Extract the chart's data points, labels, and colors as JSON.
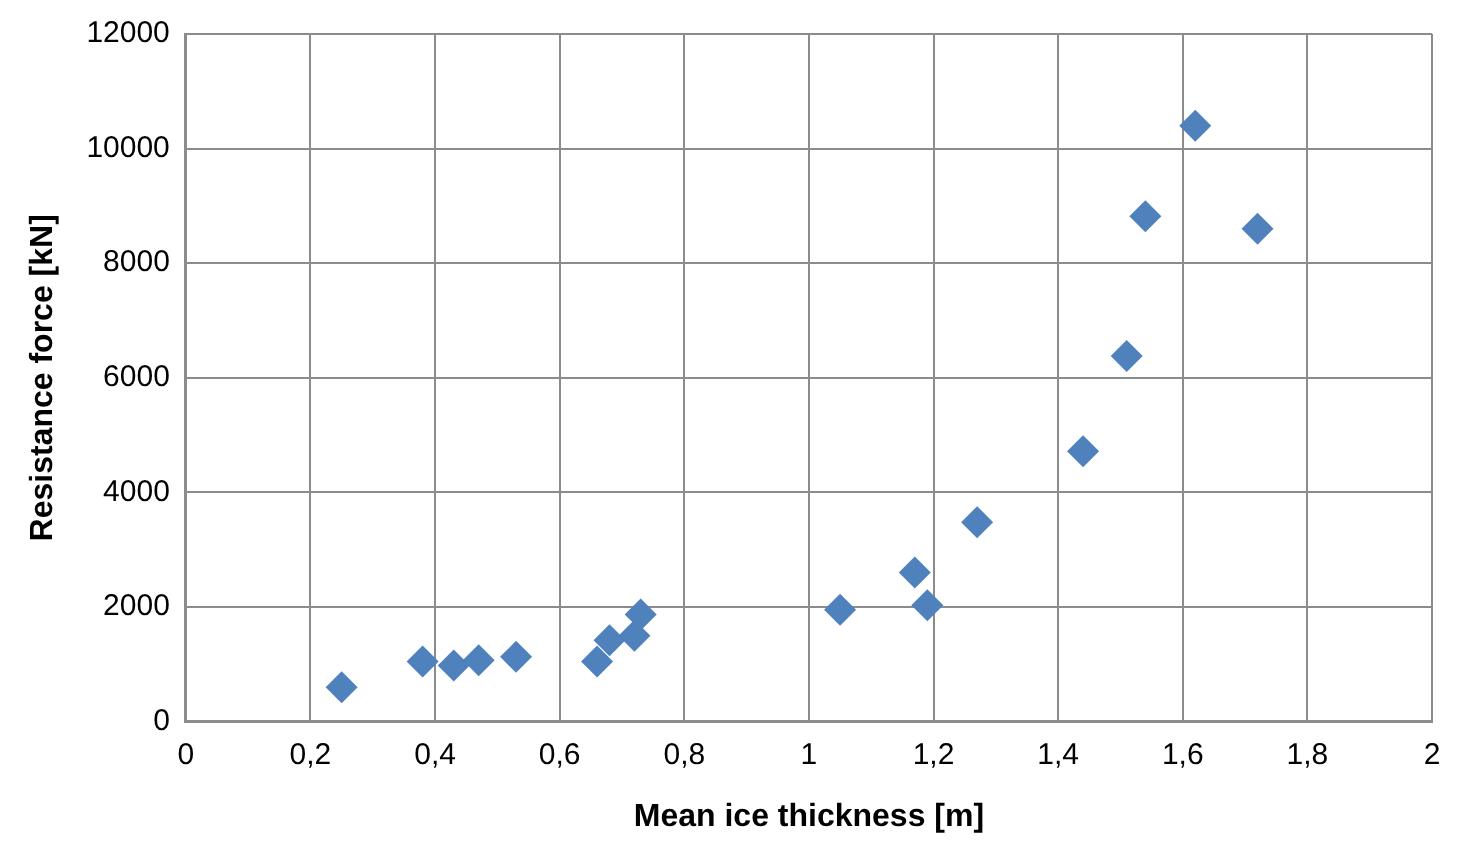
{
  "chart_data": {
    "type": "scatter",
    "xlabel": "Mean ice thickness [m]",
    "ylabel": "Resistance force [kN]",
    "x": [
      0.25,
      0.38,
      0.43,
      0.47,
      0.53,
      0.66,
      0.68,
      0.72,
      0.73,
      1.05,
      1.17,
      1.19,
      1.27,
      1.44,
      1.51,
      1.54,
      1.62,
      1.72
    ],
    "series": [
      {
        "color": "#4f81bd",
        "values": [
          600,
          1050,
          980,
          1070,
          1130,
          1050,
          1420,
          1500,
          1870,
          1950,
          2600,
          2030,
          3480,
          4720,
          6380,
          8820,
          10400,
          8600
        ]
      }
    ],
    "xlim": [
      0,
      2
    ],
    "xticks": [
      0,
      {
        "value": 0.2,
        "label": "0,2"
      },
      {
        "value": 0.4,
        "label": "0,4"
      },
      {
        "value": 0.6,
        "label": "0,6"
      },
      {
        "value": 0.8,
        "label": "0,8"
      },
      1,
      {
        "value": 1.2,
        "label": "1,2"
      },
      {
        "value": 1.4,
        "label": "1,4"
      },
      {
        "value": 1.6,
        "label": "1,6"
      },
      {
        "value": 1.8,
        "label": "1,8"
      },
      2
    ],
    "ylim": [
      0,
      12000
    ],
    "yticks": [
      0,
      2000,
      4000,
      6000,
      8000,
      10000,
      12000
    ],
    "grid": true,
    "legend": false,
    "marker": "diamond"
  }
}
